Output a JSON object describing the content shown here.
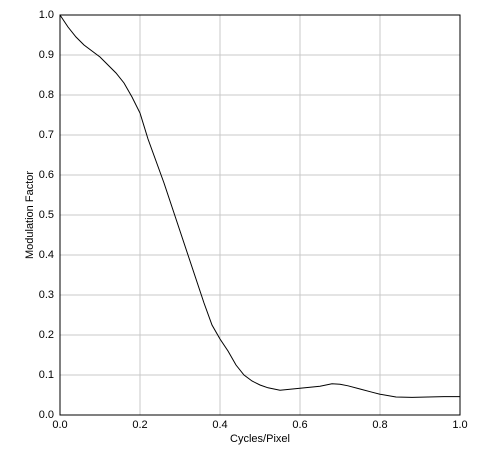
{
  "chart_data": {
    "type": "line",
    "xlabel": "Cycles/Pixel",
    "ylabel": "Modulation Factor",
    "x": [
      0,
      0.02,
      0.04,
      0.06,
      0.08,
      0.1,
      0.12,
      0.14,
      0.16,
      0.18,
      0.2,
      0.22,
      0.24,
      0.26,
      0.28,
      0.3,
      0.32,
      0.34,
      0.36,
      0.38,
      0.4,
      0.42,
      0.44,
      0.46,
      0.48,
      0.5,
      0.52,
      0.55,
      0.6,
      0.65,
      0.68,
      0.7,
      0.72,
      0.75,
      0.78,
      0.8,
      0.84,
      0.88,
      0.92,
      0.96,
      1.0
    ],
    "series": [
      {
        "color": "#000000",
        "values": [
          1.0,
          0.97,
          0.945,
          0.925,
          0.91,
          0.895,
          0.875,
          0.855,
          0.83,
          0.795,
          0.755,
          0.69,
          0.635,
          0.58,
          0.52,
          0.46,
          0.4,
          0.34,
          0.28,
          0.225,
          0.19,
          0.16,
          0.125,
          0.1,
          0.085,
          0.075,
          0.068,
          0.062,
          0.067,
          0.072,
          0.078,
          0.077,
          0.073,
          0.065,
          0.057,
          0.052,
          0.045,
          0.044,
          0.045,
          0.046,
          0.046
        ]
      }
    ],
    "xlim": [
      0,
      1.0
    ],
    "ylim": [
      0,
      1.0
    ],
    "xticks": [
      {
        "value": 0,
        "label": "0.0"
      },
      0.2,
      0.4,
      0.6,
      0.8,
      {
        "value": 1,
        "label": "1.0"
      }
    ],
    "yticks": [
      {
        "value": 0,
        "label": "0.0"
      },
      0.1,
      0.2,
      0.3,
      0.4,
      0.5,
      0.6,
      0.7,
      0.8,
      0.9,
      {
        "value": 1,
        "label": "1.0"
      }
    ],
    "grid": true
  }
}
